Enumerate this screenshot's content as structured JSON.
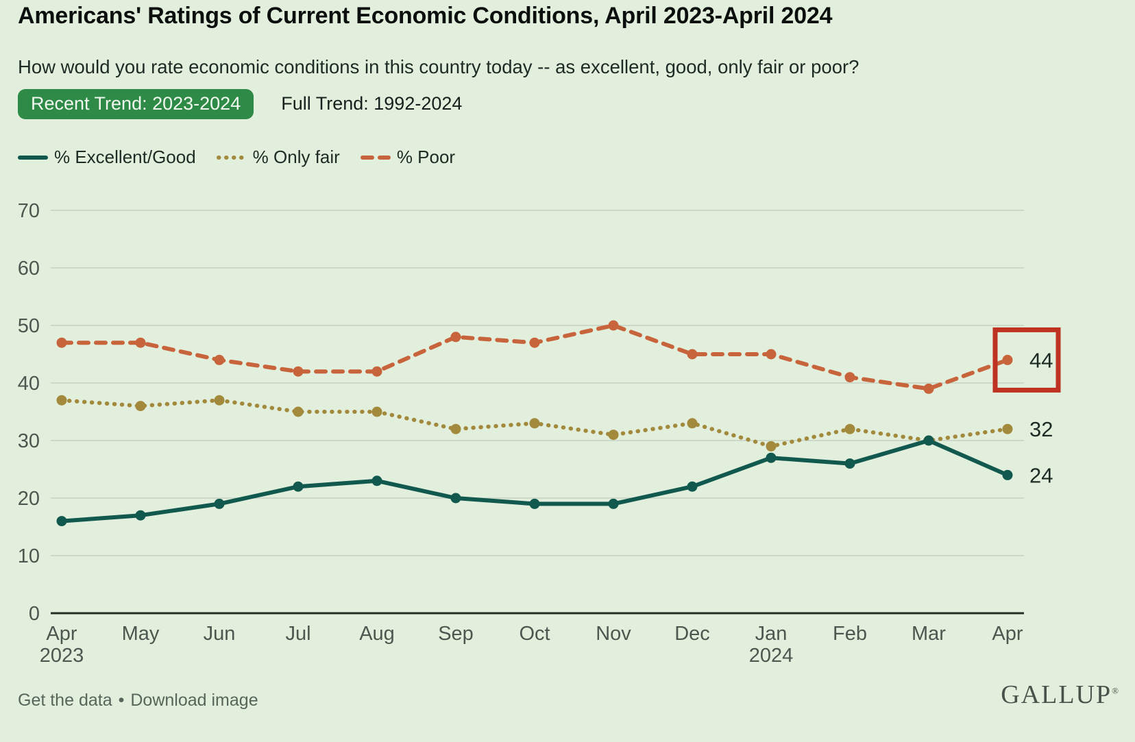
{
  "header": {
    "title": "Americans' Ratings of Current Economic Conditions, April 2023-April 2024",
    "subtitle": "How would you rate economic conditions in this country today -- as excellent, good, only fair or poor?"
  },
  "tabs": [
    {
      "label": "Recent Trend: 2023-2024",
      "active": true
    },
    {
      "label": "Full Trend: 1992-2024",
      "active": false
    }
  ],
  "legend": [
    {
      "key": "excellent-good",
      "label": "% Excellent/Good",
      "style": "solid",
      "color": "#11584e"
    },
    {
      "key": "only-fair",
      "label": "% Only fair",
      "style": "dotted",
      "color": "#a3893c"
    },
    {
      "key": "poor",
      "label": "% Poor",
      "style": "dashed",
      "color": "#c8643c"
    }
  ],
  "chart_data": {
    "type": "line",
    "title": "Americans' Ratings of Current Economic Conditions, April 2023-April 2024",
    "categories": [
      "Apr",
      "May",
      "Jun",
      "Jul",
      "Aug",
      "Sep",
      "Oct",
      "Nov",
      "Dec",
      "Jan",
      "Feb",
      "Mar",
      "Apr"
    ],
    "x_sublabels": {
      "0": "2023",
      "9": "2024"
    },
    "yticks": [
      0,
      10,
      20,
      30,
      40,
      50,
      60,
      70
    ],
    "ylim": [
      0,
      74
    ],
    "grid": true,
    "legend_position": "top-left",
    "series": [
      {
        "key": "excellent-good",
        "name": "% Excellent/Good",
        "dash": "solid",
        "color": "#11584e",
        "values": [
          16,
          17,
          19,
          22,
          23,
          20,
          19,
          19,
          22,
          27,
          26,
          30,
          24
        ],
        "end_label": "24"
      },
      {
        "key": "only-fair",
        "name": "% Only fair",
        "dash": "dotted",
        "color": "#a3893c",
        "values": [
          37,
          36,
          37,
          35,
          35,
          32,
          33,
          31,
          33,
          29,
          32,
          30,
          32
        ],
        "end_label": "32"
      },
      {
        "key": "poor",
        "name": "% Poor",
        "dash": "dashed",
        "color": "#c8643c",
        "values": [
          47,
          47,
          44,
          42,
          42,
          48,
          47,
          50,
          45,
          45,
          41,
          39,
          44
        ],
        "end_label": "44",
        "highlighted": true
      }
    ],
    "highlight_box_color": "#bf3222",
    "colors": {
      "background": "#e1efdc",
      "gridline": "#c5d2c2",
      "axis_line": "#232d26",
      "tick_text": "#4b574f",
      "value_text": "#1e2a24",
      "tab_active": "#2e8b47"
    }
  },
  "footer": {
    "links": [
      "Get the data",
      "Download image"
    ],
    "separator": "•",
    "brand": "GALLUP",
    "brand_mark": "®"
  }
}
